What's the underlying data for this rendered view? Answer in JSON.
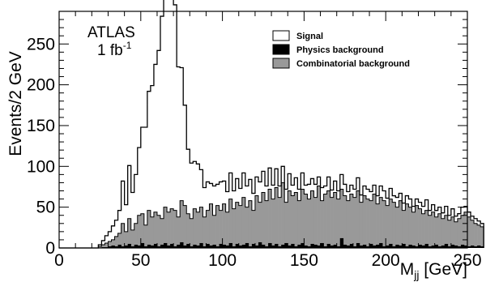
{
  "chart_data": {
    "type": "bar",
    "subtype": "stacked-histogram",
    "xlabel": "M_jj [GeV]",
    "xlabel_main": "M",
    "xlabel_sub": "jj",
    "xlabel_unit": " [GeV]",
    "ylabel": "Events/2 GeV",
    "xlim": [
      0,
      250
    ],
    "ylim": [
      0,
      290
    ],
    "bin_width": 2,
    "x_ticks": [
      0,
      50,
      100,
      150,
      200,
      250
    ],
    "y_ticks": [
      0,
      50,
      100,
      150,
      200,
      250
    ],
    "annotation": {
      "experiment": "ATLAS",
      "lumi_value": "1 fb",
      "lumi_exp": "-1"
    },
    "legend_position": "top-right",
    "legend": [
      {
        "label": "Signal",
        "style": "outline"
      },
      {
        "label": "Physics background",
        "style": "black-fill"
      },
      {
        "label": "Combinatorial background",
        "style": "gray-fill"
      }
    ],
    "colors": {
      "signal_stroke": "#000000",
      "physics_fill": "#000000",
      "combinatorial_fill": "#999999"
    },
    "series": [
      {
        "name": "Combinatorial background",
        "bin_start": 20,
        "values": [
          0,
          0,
          2,
          4,
          6,
          8,
          10,
          14,
          18,
          30,
          20,
          36,
          22,
          30,
          40,
          42,
          28,
          46,
          38,
          44,
          40,
          36,
          50,
          44,
          48,
          46,
          38,
          58,
          52,
          42,
          36,
          48,
          44,
          50,
          38,
          46,
          54,
          40,
          52,
          46,
          54,
          44,
          60,
          48,
          56,
          52,
          62,
          50,
          58,
          46,
          64,
          56,
          68,
          58,
          72,
          60,
          74,
          62,
          80,
          56,
          70,
          64,
          68,
          58,
          72,
          66,
          60,
          70,
          62,
          76,
          58,
          66,
          70,
          62,
          68,
          60,
          72,
          64,
          58,
          66,
          62,
          70,
          56,
          64,
          60,
          58,
          66,
          54,
          62,
          58,
          52,
          60,
          56,
          50,
          58,
          46,
          54,
          50,
          44,
          52,
          48,
          42,
          46,
          40,
          44,
          38,
          42,
          36,
          40,
          34,
          38,
          32,
          36,
          40,
          44,
          38,
          34,
          30,
          28,
          26
        ]
      },
      {
        "name": "Physics background",
        "bin_start": 20,
        "values": [
          0,
          0,
          0,
          1,
          1,
          2,
          3,
          2,
          4,
          2,
          3,
          5,
          2,
          4,
          3,
          6,
          2,
          4,
          3,
          5,
          2,
          4,
          6,
          3,
          5,
          2,
          4,
          7,
          3,
          5,
          2,
          4,
          3,
          6,
          2,
          5,
          3,
          4,
          2,
          5,
          4,
          3,
          6,
          2,
          5,
          3,
          4,
          6,
          2,
          5,
          3,
          7,
          4,
          2,
          6,
          3,
          5,
          2,
          4,
          6,
          3,
          5,
          2,
          4,
          6,
          3,
          2,
          5,
          4,
          3,
          6,
          2,
          5,
          3,
          4,
          2,
          12,
          4,
          3,
          5,
          2,
          6,
          3,
          4,
          2,
          5,
          3,
          4,
          6,
          2,
          3,
          5,
          2,
          4,
          3,
          5,
          2,
          4,
          3,
          2,
          4,
          3,
          5,
          2,
          3,
          4,
          2,
          3,
          5,
          2,
          4,
          3,
          2,
          4,
          3,
          2,
          3,
          2,
          3,
          2
        ]
      },
      {
        "name": "Signal",
        "bin_start": 20,
        "values": [
          0,
          0,
          2,
          4,
          8,
          10,
          14,
          18,
          24,
          50,
          30,
          60,
          44,
          56,
          80,
          100,
          118,
          142,
          158,
          176,
          200,
          244,
          256,
          268,
          272,
          250,
          180,
          156,
          120,
          74,
          66,
          54,
          56,
          40,
          34,
          30,
          22,
          32,
          24,
          30,
          24,
          22,
          26,
          20,
          24,
          18,
          26,
          20,
          24,
          16,
          20,
          18,
          22,
          16,
          20,
          14,
          18,
          12,
          16,
          10,
          18,
          8,
          16,
          10,
          14,
          8,
          16,
          10,
          12,
          8,
          10,
          8,
          12,
          6,
          10,
          8,
          6,
          10,
          8,
          6,
          8,
          10,
          6,
          8,
          10,
          6,
          8,
          6,
          8,
          10,
          6,
          8,
          6,
          8,
          6,
          4,
          8,
          6,
          4,
          6,
          4,
          6,
          8,
          4,
          6,
          4,
          6,
          4,
          6,
          4,
          6,
          4,
          4,
          6,
          4,
          4,
          2,
          4,
          2,
          2
        ]
      }
    ]
  }
}
